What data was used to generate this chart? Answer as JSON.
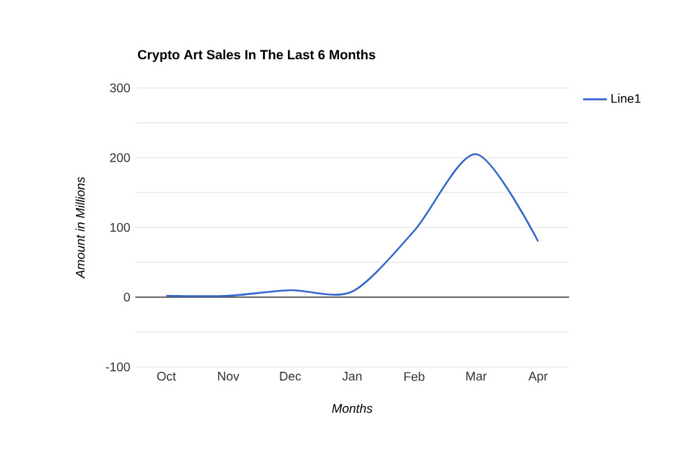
{
  "chart_data": {
    "type": "line",
    "title": "Crypto Art Sales In The Last 6 Months",
    "xlabel": "Months",
    "ylabel": "Amount in Millions",
    "categories": [
      "Oct",
      "Nov",
      "Dec",
      "Jan",
      "Feb",
      "Mar",
      "Apr"
    ],
    "series": [
      {
        "name": "Line1",
        "color": "#3366cc",
        "values": [
          2,
          2,
          10,
          8,
          95,
          205,
          80
        ]
      }
    ],
    "ylim": [
      -100,
      300
    ],
    "yticks": [
      -100,
      {
        "value": -50,
        "label": null
      },
      0,
      {
        "value": 50,
        "label": null
      },
      100,
      {
        "value": 150,
        "label": null
      },
      200,
      {
        "value": 250,
        "label": null
      },
      300
    ],
    "grid": "y",
    "legend": "top right",
    "marker": "none",
    "line_style": "solid",
    "ref_lines": [
      {
        "axis": "y",
        "value": 0,
        "color": "#333333"
      }
    ]
  }
}
